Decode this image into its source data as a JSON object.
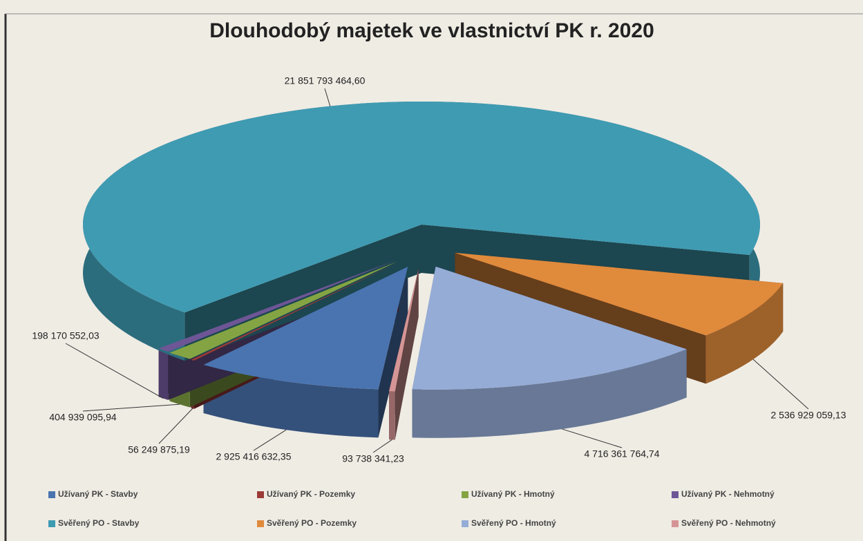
{
  "chart_data": {
    "type": "pie",
    "title": "Dlouhodobý majetek ve vlastnictví PK r. 2020",
    "categories": [
      "Užívaný PK - Stavby",
      "Užívaný PK - Pozemky",
      "Užívaný PK - Hmotný",
      "Užívaný PK - Nehmotný",
      "Svěřený PO - Stavby",
      "Svěřený PO - Pozemky",
      "Svěřený PO - Hmotný",
      "Svěřený PO - Nehmotný"
    ],
    "values": [
      2925416632.35,
      56249875.19,
      404939095.94,
      198170552.03,
      21851793464.6,
      2536929059.13,
      4716361764.74,
      93738341.23
    ],
    "value_labels": [
      "2 925 416 632,35",
      "56 249 875,19",
      "404 939 095,94",
      "198 170 552,03",
      "21 851 793 464,60",
      "2 536 929 059,13",
      "4 716 361 764,74",
      "93 738 341,23"
    ],
    "colors": [
      "#4a74b0",
      "#9b3a37",
      "#84a443",
      "#6e5696",
      "#3f9bb2",
      "#e08a3c",
      "#95acd6",
      "#d69595"
    ],
    "legend": "bottom"
  }
}
